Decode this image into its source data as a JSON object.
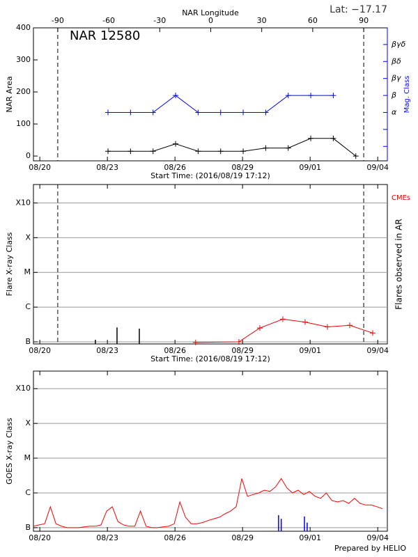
{
  "footer": "Prepared by HELIO",
  "chart_data": [
    {
      "type": "line",
      "annotation": "NAR 12580",
      "lat_label": "Lat: −17.17",
      "x2label": "NAR Longitude",
      "xlabel": "Start Time: (2016/08/19 17:12)",
      "ylabel": "NAR Area",
      "y2label": "Mag. Class",
      "limb_lines": true,
      "xlim": [
        0,
        15.71
      ],
      "xticks": [
        {
          "value": 0.283,
          "label": "08/20"
        },
        {
          "value": 3.283,
          "label": "08/23"
        },
        {
          "value": 6.283,
          "label": "08/26"
        },
        {
          "value": 9.283,
          "label": "08/29"
        },
        {
          "value": 12.283,
          "label": "09/01"
        },
        {
          "value": 15.283,
          "label": "09/04"
        }
      ],
      "x2lim": [
        -104.3,
        103.9
      ],
      "x2ticks": [
        -90,
        -60,
        -30,
        0,
        30,
        60,
        90
      ],
      "ylim": [
        -15,
        400
      ],
      "yticks": [
        0,
        100,
        200,
        300,
        400
      ],
      "y2lim": [
        -0.85,
        6.98
      ],
      "y2categories": [
        null,
        null,
        "α",
        "β",
        "βγ",
        "βδ",
        "βγδ"
      ],
      "series": [
        {
          "color": "#000000",
          "marker": "+",
          "x": [
            3.31,
            4.31,
            5.31,
            6.31,
            7.31,
            8.31,
            9.31,
            10.31,
            11.31,
            12.31,
            13.31,
            14.31
          ],
          "values": [
            15,
            15,
            15,
            38,
            15,
            15,
            15,
            25,
            25,
            55,
            55,
            0
          ]
        },
        {
          "color": "#0000ff",
          "marker": "+",
          "axis": "y2",
          "x": [
            3.31,
            4.31,
            5.31,
            6.31,
            7.31,
            8.31,
            9.31,
            10.31,
            11.31,
            12.31,
            13.31
          ],
          "values": [
            "α",
            "α",
            "α",
            "β",
            "α",
            "α",
            "α",
            "α",
            "β",
            "β",
            "β"
          ]
        }
      ]
    },
    {
      "type": "line",
      "xlabel": "Start Time: (2016/08/19 17:12)",
      "ylabel": "Flare X-ray Class",
      "y2label": "Flares observed in AR",
      "limb_lines": true,
      "grid": true,
      "ylog": true,
      "xlim": [
        0,
        15.71
      ],
      "xticks": [
        {
          "value": 0.283,
          "label": "08/20"
        },
        {
          "value": 3.283,
          "label": "08/23"
        },
        {
          "value": 6.283,
          "label": "08/26"
        },
        {
          "value": 9.283,
          "label": "08/29"
        },
        {
          "value": 12.283,
          "label": "09/01"
        },
        {
          "value": 15.283,
          "label": "09/04"
        }
      ],
      "ylim": [
        8.7e-08,
        0.0034
      ],
      "yticks": [
        {
          "value": 1e-07,
          "label": "B"
        },
        {
          "value": 1e-06,
          "label": "C"
        },
        {
          "value": 1e-05,
          "label": "M"
        },
        {
          "value": 0.0001,
          "label": "X"
        },
        {
          "value": 0.001,
          "label": "X10"
        }
      ],
      "series": [
        {
          "type": "stem",
          "color": "#000000",
          "x": [
            2.75,
            3.71,
            4.7
          ],
          "values": [
            1.15e-07,
            2.6e-07,
            2.4e-07
          ]
        },
        {
          "name": "CMEs",
          "color": "#ee0000",
          "marker": "+",
          "x": [
            7.2,
            9.12,
            10.05,
            11.07,
            12.06,
            13.05,
            14.04,
            15.06
          ],
          "values": [
            9.6e-08,
            1e-07,
            2.5e-07,
            4.5e-07,
            3.7e-07,
            2.7e-07,
            3e-07,
            1.8e-07
          ]
        }
      ]
    },
    {
      "type": "line",
      "ylabel": "GOES X-ray Class",
      "grid": true,
      "ylog": true,
      "xlim": [
        0,
        15.71
      ],
      "xticks": [
        {
          "value": 0.283,
          "label": "08/20"
        },
        {
          "value": 3.283,
          "label": "08/23"
        },
        {
          "value": 6.283,
          "label": "08/26"
        },
        {
          "value": 9.283,
          "label": "08/29"
        },
        {
          "value": 12.283,
          "label": "09/01"
        },
        {
          "value": 15.283,
          "label": "09/04"
        }
      ],
      "ylim": [
        7.9e-08,
        0.0032
      ],
      "yticks": [
        {
          "value": 1e-07,
          "label": "B"
        },
        {
          "value": 1e-06,
          "label": "C"
        },
        {
          "value": 1e-05,
          "label": "M"
        },
        {
          "value": 0.0001,
          "label": "X"
        },
        {
          "value": 0.001,
          "label": "X10"
        }
      ],
      "series": [
        {
          "color": "#ff0000",
          "x": [
            0,
            0.25,
            0.5,
            0.75,
            1,
            1.25,
            1.5,
            1.75,
            2,
            2.25,
            2.5,
            2.75,
            3,
            3.25,
            3.5,
            3.75,
            4,
            4.25,
            4.5,
            4.75,
            5,
            5.25,
            5.5,
            5.75,
            6,
            6.25,
            6.5,
            6.75,
            7,
            7.25,
            7.5,
            7.75,
            8,
            8.25,
            8.5,
            8.75,
            9,
            9.25,
            9.5,
            9.75,
            10,
            10.25,
            10.5,
            10.75,
            11,
            11.25,
            11.5,
            11.75,
            12,
            12.25,
            12.5,
            12.75,
            13,
            13.25,
            13.5,
            13.75,
            14,
            14.25,
            14.5,
            14.75,
            15,
            15.25,
            15.5
          ],
          "values": [
            1.1e-07,
            1.2e-07,
            1.3e-07,
            4e-07,
            1.3e-07,
            1.1e-07,
            1e-07,
            1e-07,
            1e-07,
            1.05e-07,
            1.1e-07,
            1.1e-07,
            1.2e-07,
            3e-07,
            4e-07,
            1.5e-07,
            1.2e-07,
            1.1e-07,
            1.1e-07,
            3e-07,
            1.1e-07,
            1e-07,
            1e-07,
            1.05e-07,
            1.1e-07,
            1.3e-07,
            5.5e-07,
            2e-07,
            1.3e-07,
            1.3e-07,
            1.4e-07,
            1.6e-07,
            1.8e-07,
            2e-07,
            2.5e-07,
            3e-07,
            4e-07,
            2.6e-06,
            8e-07,
            9e-07,
            1e-06,
            1.2e-06,
            1.1e-06,
            1.5e-06,
            2.6e-06,
            1.4e-06,
            1e-06,
            1.2e-06,
            9e-07,
            1.1e-06,
            8e-07,
            7e-07,
            1e-06,
            6e-07,
            5.5e-07,
            6e-07,
            5e-07,
            7e-07,
            5e-07,
            4.5e-07,
            4.5e-07,
            4e-07,
            3.5e-07
          ]
        },
        {
          "type": "stem",
          "color": "#0000ff",
          "x": [
            10.88,
            11.0,
            12.03,
            12.15
          ],
          "values": [
            2.3e-07,
            1.8e-07,
            2.1e-07,
            1.4e-07
          ]
        }
      ]
    }
  ]
}
